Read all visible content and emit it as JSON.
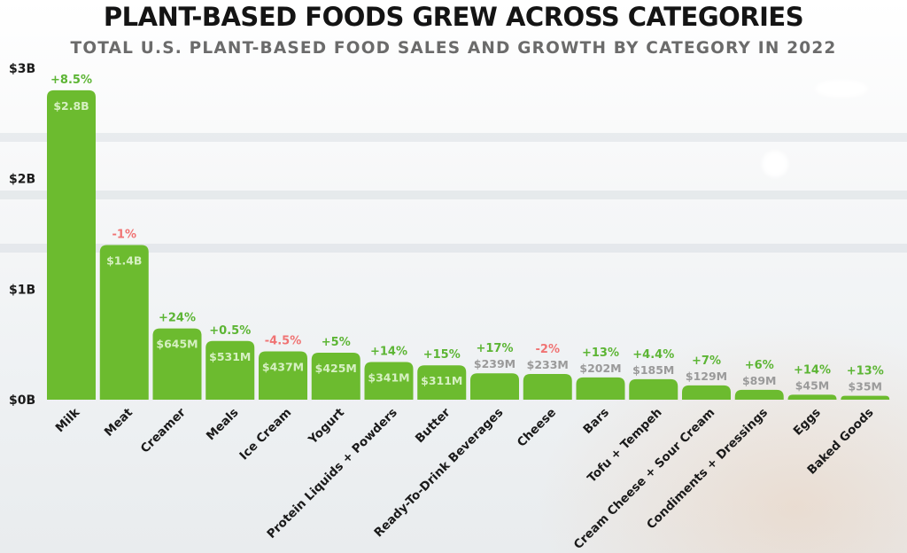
{
  "chart_data": {
    "type": "bar",
    "title": "PLANT-BASED FOODS GREW ACROSS CATEGORIES",
    "subtitle": "TOTAL U.S. PLANT-BASED FOOD SALES AND GROWTH BY CATEGORY IN 2022",
    "ylim": [
      0,
      3000
    ],
    "yticks": [
      {
        "value": 0,
        "label": "$0B"
      },
      {
        "value": 1000,
        "label": "$1B"
      },
      {
        "value": 2000,
        "label": "$2B"
      },
      {
        "value": 3000,
        "label": "$3B"
      }
    ],
    "grid": false,
    "bar_color": "#6cbb2f",
    "colors": {
      "positive_growth": "#5cb534",
      "negative_growth": "#f07373",
      "value_label_inside": "#d6f0c2",
      "value_label_above": "#9a9a9a"
    },
    "categories": [
      "Milk",
      "Meat",
      "Creamer",
      "Meals",
      "Ice Cream",
      "Yogurt",
      "Protein Liquids + Powders",
      "Butter",
      "Ready-To-Drink Beverages",
      "Cheese",
      "Bars",
      "Tofu + Tempeh",
      "Cream Cheese + Sour Cream",
      "Condiments + Dressings",
      "Eggs",
      "Baked Goods"
    ],
    "values": [
      2800,
      1400,
      645,
      531,
      437,
      425,
      341,
      311,
      239,
      233,
      202,
      185,
      129,
      89,
      45,
      35
    ],
    "value_labels": [
      "$2.8B",
      "$1.4B",
      "$645M",
      "$531M",
      "$437M",
      "$425M",
      "$341M",
      "$311M",
      "$239M",
      "$233M",
      "$202M",
      "$185M",
      "$129M",
      "$89M",
      "$45M",
      "$35M"
    ],
    "growth_labels": [
      "+8.5%",
      "-1%",
      "+24%",
      "+0.5%",
      "-4.5%",
      "+5%",
      "+14%",
      "+15%",
      "+17%",
      "-2%",
      "+13%",
      "+4.4%",
      "+7%",
      "+6%",
      "+14%",
      "+13%"
    ],
    "growth": [
      8.5,
      -1,
      24,
      0.5,
      -4.5,
      5,
      14,
      15,
      17,
      -2,
      13,
      4.4,
      7,
      6,
      14,
      13
    ]
  }
}
